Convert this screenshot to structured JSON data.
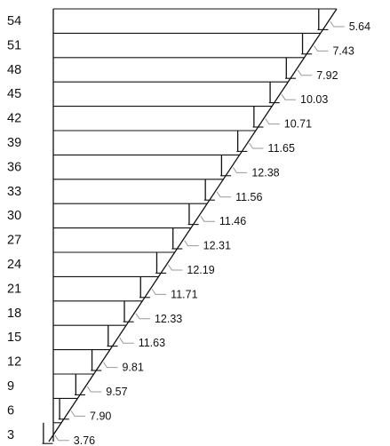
{
  "y_labels": [
    "54",
    "51",
    "48",
    "45",
    "42",
    "39",
    "36",
    "33",
    "30",
    "27",
    "24",
    "21",
    "18",
    "15",
    "12",
    "9",
    "6",
    "3"
  ],
  "values": [
    "5.64",
    "7.43",
    "7.92",
    "10.03",
    "10.71",
    "11.65",
    "12.38",
    "11.56",
    "11.46",
    "12.31",
    "12.19",
    "11.71",
    "12.33",
    "11.63",
    "9.81",
    "9.57",
    "7.90",
    "3.76"
  ],
  "colors": {
    "line": "#111111",
    "leader": "#9a9a9a",
    "background": "#ffffff"
  }
}
